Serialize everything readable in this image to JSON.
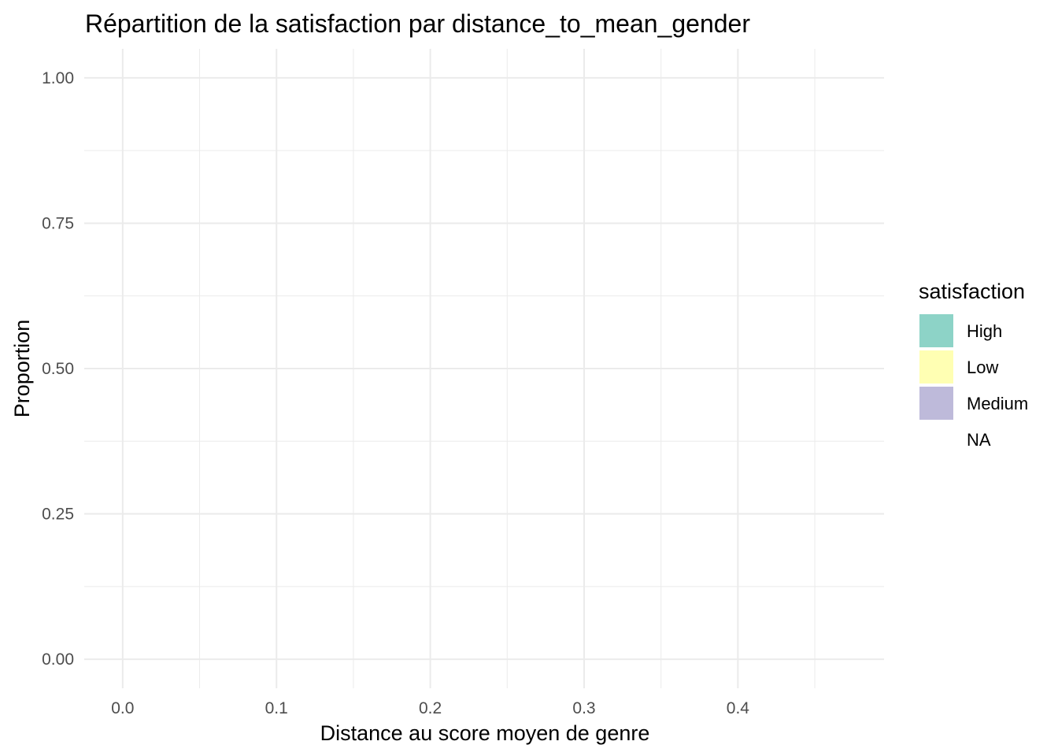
{
  "chart_data": {
    "type": "area",
    "title": "Répartition de la satisfaction par distance_to_mean_gender",
    "xlabel": "Distance au score moyen de genre",
    "ylabel": "Proportion",
    "xlim": [
      -0.025,
      0.495
    ],
    "ylim": [
      -0.05,
      1.05
    ],
    "x_ticks": [
      0.0,
      0.1,
      0.2,
      0.3,
      0.4
    ],
    "x_tick_labels": [
      "0.0",
      "0.1",
      "0.2",
      "0.3",
      "0.4"
    ],
    "x_minor_ticks": [
      0.05,
      0.15,
      0.25,
      0.35,
      0.45
    ],
    "y_ticks": [
      0.0,
      0.25,
      0.5,
      0.75,
      1.0
    ],
    "y_tick_labels": [
      "0.00",
      "0.25",
      "0.50",
      "0.75",
      "1.00"
    ],
    "y_minor_ticks": [
      0.125,
      0.375,
      0.625,
      0.875
    ],
    "grid": true,
    "legend": {
      "title": "satisfaction",
      "placement": "right",
      "entries": [
        {
          "label": "High",
          "color": "#8dd3c7"
        },
        {
          "label": "Low",
          "color": "#ffffb3"
        },
        {
          "label": "Medium",
          "color": "#bebada"
        },
        {
          "label": "NA",
          "color": "#ffffff"
        }
      ]
    },
    "series": []
  }
}
